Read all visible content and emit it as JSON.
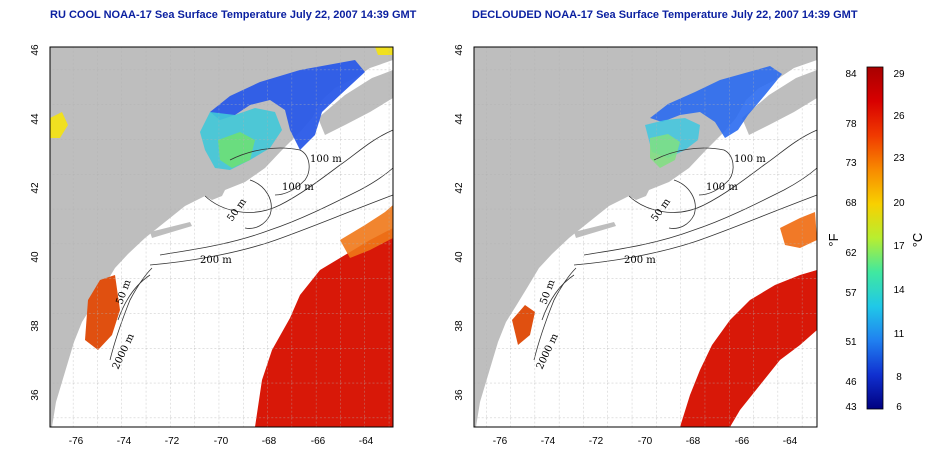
{
  "left_panel": {
    "title": "RU COOL NOAA-17 Sea Surface Temperature July 22, 2007 14:39 GMT"
  },
  "right_panel": {
    "title": "DECLOUDED NOAA-17 Sea Surface Temperature July 22, 2007 14:39 GMT"
  },
  "map": {
    "lon_ticks": [
      "-76",
      "-74",
      "-72",
      "-70",
      "-68",
      "-66",
      "-64"
    ],
    "lat_ticks": [
      "46",
      "44",
      "42",
      "40",
      "38",
      "36"
    ],
    "contour_labels": [
      "100 m",
      "100 m",
      "50 m",
      "200 m",
      "50 m",
      "2000 m"
    ],
    "land_color": "#bebebe",
    "ocean_color": "#ffffff"
  },
  "colorbar": {
    "fahrenheit_label": "°F",
    "celsius_label": "°C",
    "fahrenheit_ticks": [
      "84",
      "78",
      "73",
      "68",
      "62",
      "57",
      "51",
      "46",
      "43"
    ],
    "celsius_ticks": [
      "29",
      "26",
      "23",
      "20",
      "17",
      "14",
      "11",
      "8",
      "6"
    ],
    "colors": [
      "#a80000",
      "#d80000",
      "#f03a00",
      "#f88a00",
      "#f8d000",
      "#b8ee30",
      "#40e8a0",
      "#20c8e8",
      "#2080f0",
      "#1030d0",
      "#000080"
    ]
  }
}
